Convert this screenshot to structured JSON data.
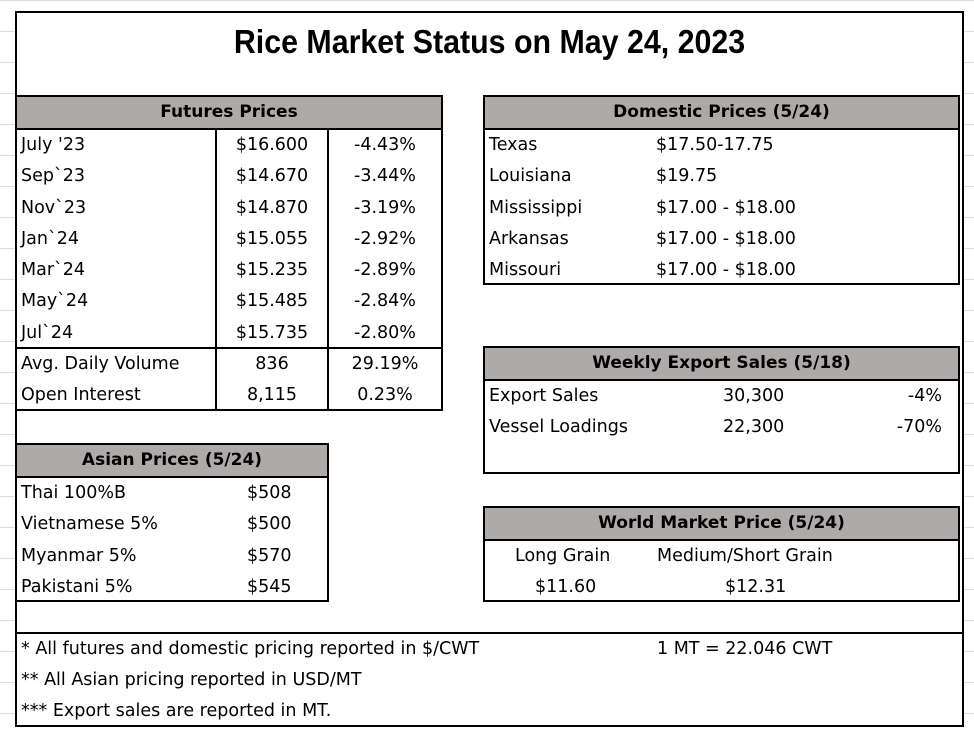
{
  "title": "Rice Market Status on May 24, 2023",
  "futures": {
    "header": "Futures Prices",
    "rows": [
      {
        "month": "July '23",
        "price": "$16.600",
        "change": "-4.43%"
      },
      {
        "month": "Sep`23",
        "price": "$14.670",
        "change": "-3.44%"
      },
      {
        "month": "Nov`23",
        "price": "$14.870",
        "change": "-3.19%"
      },
      {
        "month": "Jan`24",
        "price": "$15.055",
        "change": "-2.92%"
      },
      {
        "month": "Mar`24",
        "price": "$15.235",
        "change": "-2.89%"
      },
      {
        "month": "May`24",
        "price": "$15.485",
        "change": "-2.84%"
      },
      {
        "month": "Jul`24",
        "price": "$15.735",
        "change": "-2.80%"
      }
    ],
    "stats": [
      {
        "label": "Avg. Daily Volume",
        "value": "836",
        "change": "29.19%"
      },
      {
        "label": "Open Interest",
        "value": "8,115",
        "change": "0.23%"
      }
    ]
  },
  "domestic": {
    "header": "Domestic Prices (5/24)",
    "rows": [
      {
        "state": "Texas",
        "price": "$17.50-17.75"
      },
      {
        "state": "Louisiana",
        "price": "$19.75"
      },
      {
        "state": "Mississippi",
        "price": "$17.00 - $18.00"
      },
      {
        "state": "Arkansas",
        "price": "$17.00 - $18.00"
      },
      {
        "state": "Missouri",
        "price": "$17.00 - $18.00"
      }
    ]
  },
  "asian": {
    "header": "Asian Prices (5/24)",
    "rows": [
      {
        "name": "Thai 100%B",
        "price": "$508"
      },
      {
        "name": "Vietnamese 5%",
        "price": "$500"
      },
      {
        "name": "Myanmar 5%",
        "price": "$570"
      },
      {
        "name": "Pakistani 5%",
        "price": "$545"
      }
    ]
  },
  "export": {
    "header": "Weekly Export Sales (5/18)",
    "rows": [
      {
        "label": "Export Sales",
        "value": "30,300",
        "change": "-4%"
      },
      {
        "label": "Vessel Loadings",
        "value": "22,300",
        "change": "-70%"
      }
    ]
  },
  "world": {
    "header": "World Market Price (5/24)",
    "long_label": "Long Grain",
    "medium_label": "Medium/Short Grain",
    "long_price": "$11.60",
    "medium_price": "$12.31"
  },
  "notes": {
    "n1": "* All futures and domestic pricing reported in $/CWT",
    "conversion": "1 MT = 22.046 CWT",
    "n2": "** All Asian pricing reported in USD/MT",
    "n3": "*** Export sales are reported in MT."
  },
  "colors": {
    "header_fill": "#aeaaaa",
    "border": "#000000"
  }
}
